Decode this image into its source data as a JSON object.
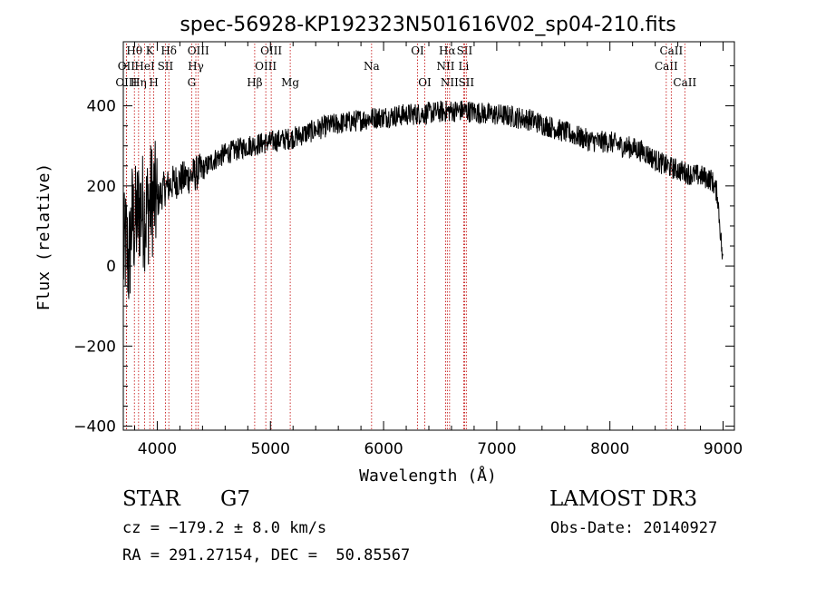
{
  "chart_data": {
    "type": "line",
    "title": "spec-56928-KP192323N501616V02_sp04-210.fits",
    "xlabel": "Wavelength (Å)",
    "ylabel": "Flux (relative)",
    "xlim": [
      3700,
      9100
    ],
    "ylim": [
      -410,
      560
    ],
    "x_ticks": [
      4000,
      5000,
      6000,
      7000,
      8000,
      9000
    ],
    "y_ticks": [
      -400,
      -200,
      0,
      200,
      400
    ],
    "x_tick_labels": [
      "4000",
      "5000",
      "6000",
      "7000",
      "8000",
      "9000"
    ],
    "y_tick_labels": [
      "−400",
      "−200",
      "0",
      "200",
      "400"
    ],
    "line_color": "#000000",
    "marker_color": "#c00000",
    "series": [
      {
        "name": "flux",
        "x": [
          3700,
          3725,
          3750,
          3775,
          3800,
          3850,
          3900,
          3950,
          4000,
          4050,
          4100,
          4150,
          4200,
          4300,
          4400,
          4500,
          4600,
          4700,
          4800,
          4900,
          5000,
          5100,
          5200,
          5300,
          5400,
          5500,
          5600,
          5700,
          5800,
          5900,
          6000,
          6100,
          6200,
          6300,
          6400,
          6500,
          6600,
          6700,
          6800,
          6900,
          7000,
          7100,
          7200,
          7300,
          7400,
          7500,
          7600,
          7700,
          7800,
          7900,
          8000,
          8100,
          8200,
          8300,
          8400,
          8500,
          8600,
          8700,
          8800,
          8900,
          8950,
          9000
        ],
        "y": [
          20,
          60,
          0,
          120,
          100,
          150,
          130,
          170,
          160,
          190,
          200,
          210,
          215,
          225,
          240,
          265,
          280,
          290,
          300,
          305,
          310,
          315,
          320,
          330,
          340,
          350,
          355,
          360,
          365,
          370,
          372,
          375,
          378,
          380,
          382,
          385,
          387,
          388,
          385,
          380,
          378,
          375,
          370,
          365,
          355,
          345,
          335,
          325,
          315,
          310,
          310,
          300,
          295,
          285,
          265,
          250,
          240,
          230,
          225,
          215,
          180,
          0
        ]
      }
    ],
    "line_markers": [
      {
        "label": "Hθ",
        "wavelength": 3798,
        "row": 0
      },
      {
        "label": "OII",
        "wavelength": 3727,
        "row": 1
      },
      {
        "label": "OIII",
        "wavelength": 3727,
        "row": 2
      },
      {
        "label": "Hη",
        "wavelength": 3835,
        "row": 2
      },
      {
        "label": "HeI",
        "wavelength": 3889,
        "row": 1
      },
      {
        "label": "K",
        "wavelength": 3934,
        "row": 0
      },
      {
        "label": "H",
        "wavelength": 3969,
        "row": 2
      },
      {
        "label": "SII",
        "wavelength": 4072,
        "row": 1
      },
      {
        "label": "Hδ",
        "wavelength": 4102,
        "row": 0
      },
      {
        "label": "G",
        "wavelength": 4304,
        "row": 2
      },
      {
        "label": "Hγ",
        "wavelength": 4341,
        "row": 1
      },
      {
        "label": "OIII",
        "wavelength": 4363,
        "row": 0
      },
      {
        "label": "Hβ",
        "wavelength": 4861,
        "row": 2
      },
      {
        "label": "OIII",
        "wavelength": 4959,
        "row": 1
      },
      {
        "label": "OIII",
        "wavelength": 5007,
        "row": 0
      },
      {
        "label": "Mg",
        "wavelength": 5175,
        "row": 2
      },
      {
        "label": "Na",
        "wavelength": 5894,
        "row": 1
      },
      {
        "label": "OI",
        "wavelength": 6300,
        "row": 0
      },
      {
        "label": "OI",
        "wavelength": 6364,
        "row": 2
      },
      {
        "label": "NII",
        "wavelength": 6548,
        "row": 1
      },
      {
        "label": "Hα",
        "wavelength": 6563,
        "row": 0
      },
      {
        "label": "NII",
        "wavelength": 6583,
        "row": 2
      },
      {
        "label": "Li",
        "wavelength": 6708,
        "row": 1
      },
      {
        "label": "SII",
        "wavelength": 6716,
        "row": 0
      },
      {
        "label": "SII",
        "wavelength": 6731,
        "row": 2
      },
      {
        "label": "CaII",
        "wavelength": 8498,
        "row": 1
      },
      {
        "label": "CaII",
        "wavelength": 8542,
        "row": 0
      },
      {
        "label": "CaII",
        "wavelength": 8662,
        "row": 2
      }
    ]
  },
  "info": {
    "object_class": "STAR",
    "subclass": "G7",
    "survey": "LAMOST DR3",
    "redshift": "cz = −179.2 ± 8.0 km/s",
    "obs_date": "Obs-Date: 20140927",
    "coords": "RA = 291.27154, DEC =  50.85567"
  }
}
